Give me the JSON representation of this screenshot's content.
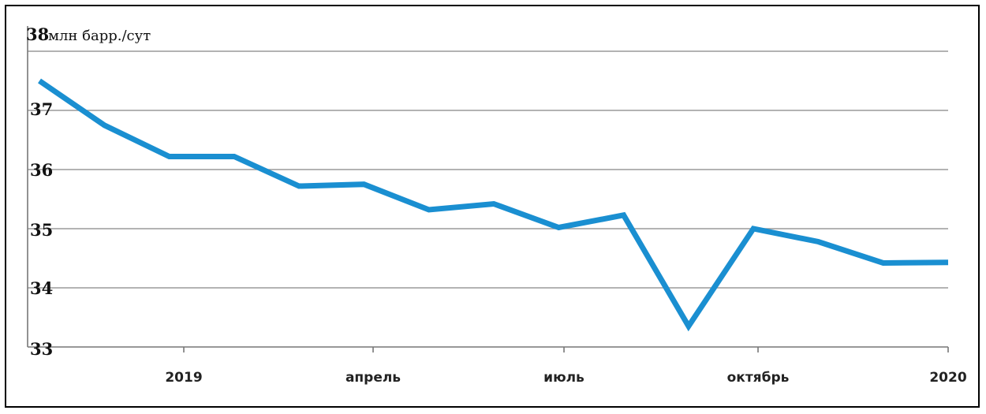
{
  "chart_data": {
    "type": "line",
    "y_top_label": {
      "value": "38",
      "unit": "млн барр./сут"
    },
    "y_tick_labels": [
      "37",
      "36",
      "35",
      "34",
      "33"
    ],
    "x_tick_labels": [
      "2019",
      "апрель",
      "июль",
      "октябрь",
      "2020"
    ],
    "ylim": [
      33,
      38
    ],
    "grid": true,
    "series": [
      {
        "color": "#1a8fd1",
        "values": [
          37.5,
          36.75,
          36.22,
          36.22,
          35.72,
          35.75,
          35.32,
          35.42,
          35.02,
          35.23,
          33.35,
          35.0,
          34.78,
          34.42,
          34.43
        ]
      }
    ]
  }
}
